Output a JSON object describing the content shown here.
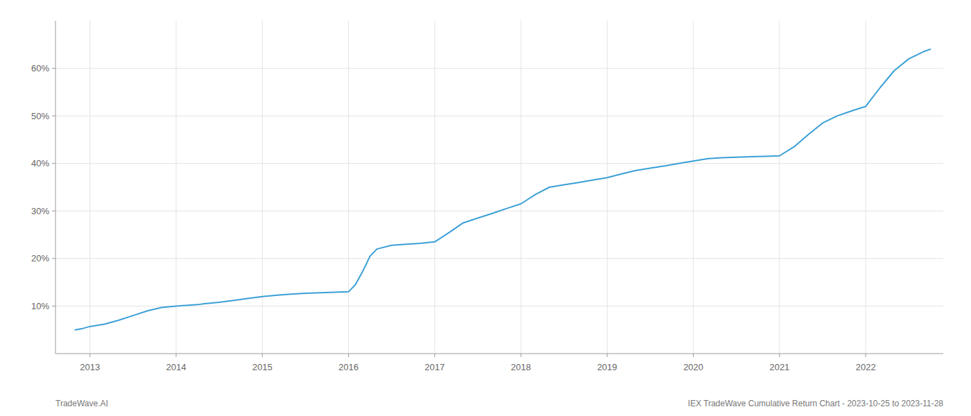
{
  "chart_data": {
    "type": "line",
    "x": [
      2012.83,
      2012.92,
      2013.0,
      2013.17,
      2013.33,
      2013.5,
      2013.67,
      2013.83,
      2014.0,
      2014.08,
      2014.17,
      2014.25,
      2014.33,
      2014.5,
      2014.67,
      2014.83,
      2015.0,
      2015.17,
      2015.33,
      2015.5,
      2015.67,
      2015.83,
      2016.0,
      2016.08,
      2016.17,
      2016.25,
      2016.33,
      2016.5,
      2016.67,
      2016.83,
      2017.0,
      2017.17,
      2017.33,
      2017.5,
      2017.67,
      2017.83,
      2018.0,
      2018.17,
      2018.33,
      2018.5,
      2018.67,
      2018.83,
      2019.0,
      2019.17,
      2019.33,
      2019.5,
      2019.67,
      2019.83,
      2020.0,
      2020.17,
      2020.33,
      2020.5,
      2020.67,
      2020.83,
      2021.0,
      2021.17,
      2021.33,
      2021.5,
      2021.67,
      2021.83,
      2022.0,
      2022.17,
      2022.33,
      2022.5,
      2022.67,
      2022.75
    ],
    "values": [
      5.0,
      5.3,
      5.7,
      6.2,
      7.0,
      8.0,
      9.0,
      9.7,
      10.0,
      10.1,
      10.2,
      10.3,
      10.5,
      10.8,
      11.2,
      11.6,
      12.0,
      12.3,
      12.5,
      12.7,
      12.8,
      12.9,
      13.0,
      14.5,
      17.5,
      20.5,
      22.0,
      22.8,
      23.0,
      23.2,
      23.5,
      25.5,
      27.5,
      28.5,
      29.5,
      30.5,
      31.5,
      33.5,
      35.0,
      35.5,
      36.0,
      36.5,
      37.0,
      37.8,
      38.5,
      39.0,
      39.5,
      40.0,
      40.5,
      41.0,
      41.2,
      41.3,
      41.4,
      41.5,
      41.6,
      43.5,
      46.0,
      48.5,
      50.0,
      51.0,
      52.0,
      56.0,
      59.5,
      62.0,
      63.5,
      64.0
    ],
    "color": "#3a9fd6",
    "xlim": [
      2012.6,
      2022.9
    ],
    "xticks": [
      2013,
      2014,
      2015,
      2016,
      2017,
      2018,
      2019,
      2020,
      2021,
      2022
    ],
    "ylim": [
      0,
      70
    ],
    "yticks": [
      {
        "value": 10,
        "label": "10%"
      },
      {
        "value": 20,
        "label": "20%"
      },
      {
        "value": 30,
        "label": "30%"
      },
      {
        "value": 40,
        "label": "40%"
      },
      {
        "value": 50,
        "label": "50%"
      },
      {
        "value": 60,
        "label": "60%"
      }
    ],
    "grid": true,
    "annotations": [
      "TradeWave.AI",
      "IEX TradeWave Cumulative Return Chart - 2023-10-25 to 2023-11-28"
    ]
  }
}
